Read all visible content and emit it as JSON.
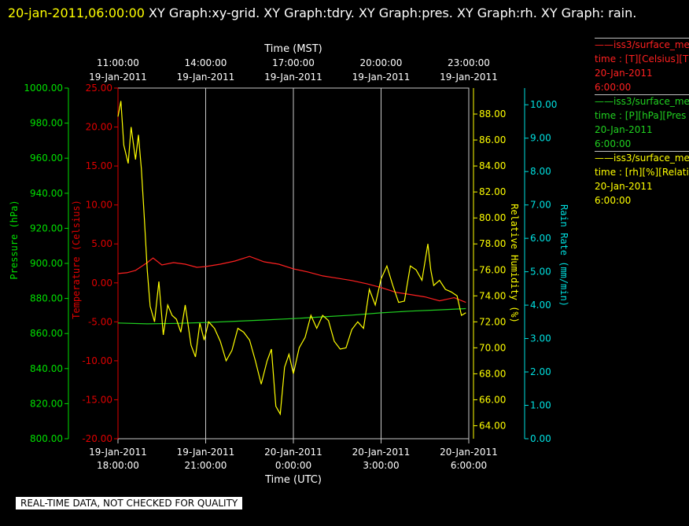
{
  "header": {
    "timestamp": "20-jan-2011,06:00:00",
    "title_rest": "  XY Graph:xy-grid.  XY Graph:tdry.  XY Graph:pres.  XY Graph:rh.  XY Graph: rain."
  },
  "legend": [
    {
      "line1": "iss3/surface_me",
      "line2": "time : [T][Celsius][T",
      "line3": "20-Jan-2011",
      "line4": "6:00:00",
      "color": "#ff2020"
    },
    {
      "line1": "iss3/surface_me",
      "line2": "time : [P][hPa][Pres",
      "line3": "20-Jan-2011",
      "line4": "6:00:00",
      "color": "#20d020"
    },
    {
      "line1": "iss3/surface_me",
      "line2": "time : [rh][%][Relati",
      "line3": "20-Jan-2011",
      "line4": "6:00:00",
      "color": "#ffff00"
    }
  ],
  "disclaimer": "REAL-TIME DATA, NOT CHECKED FOR QUALITY",
  "chart_data": {
    "type": "line",
    "top_axis": {
      "title": "Time (MST)",
      "ticks": [
        {
          "time": "11:00:00",
          "date": "19-Jan-2011"
        },
        {
          "time": "14:00:00",
          "date": "19-Jan-2011"
        },
        {
          "time": "17:00:00",
          "date": "19-Jan-2011"
        },
        {
          "time": "20:00:00",
          "date": "19-Jan-2011"
        },
        {
          "time": "23:00:00",
          "date": "19-Jan-2011"
        }
      ]
    },
    "bottom_axis": {
      "title": "Time (UTC)",
      "ticks": [
        {
          "date": "19-Jan-2011",
          "time": "18:00:00"
        },
        {
          "date": "19-Jan-2011",
          "time": "21:00:00"
        },
        {
          "date": "20-Jan-2011",
          "time": "0:00:00"
        },
        {
          "date": "20-Jan-2011",
          "time": "3:00:00"
        },
        {
          "date": "20-Jan-2011",
          "time": "6:00:00"
        }
      ],
      "range_hours_utc": [
        18,
        30
      ]
    },
    "y_axes": {
      "pressure": {
        "label": "Pressure (hPa)",
        "range": [
          800,
          1000
        ],
        "ticks": [
          "800.00",
          "820.00",
          "840.00",
          "860.00",
          "880.00",
          "900.00",
          "920.00",
          "940.00",
          "960.00",
          "980.00",
          "1000.00"
        ],
        "color": "#00e000"
      },
      "temperature": {
        "label": "Temperature (Celsius)",
        "range": [
          -20,
          25
        ],
        "ticks": [
          "-20.00",
          "-15.00",
          "-10.00",
          "-5.00",
          "0.00",
          "5.00",
          "10.00",
          "15.00",
          "20.00",
          "25.00"
        ],
        "color": "#e00000"
      },
      "humidity": {
        "label": "Relative Humidity (%)",
        "range": [
          63,
          90
        ],
        "ticks": [
          "64.00",
          "66.00",
          "68.00",
          "70.00",
          "72.00",
          "74.00",
          "76.00",
          "78.00",
          "80.00",
          "82.00",
          "84.00",
          "86.00",
          "88.00"
        ],
        "color": "#ffff00"
      },
      "rain": {
        "label": "Rain Rate (mm/min)",
        "range": [
          0,
          10.5
        ],
        "ticks": [
          "0.00",
          "1.00",
          "2.00",
          "3.00",
          "4.00",
          "5.00",
          "6.00",
          "7.00",
          "8.00",
          "9.00",
          "10.00"
        ],
        "color": "#00e0e0"
      }
    },
    "series": [
      {
        "name": "iss3/surface_me time : [T][Celsius][T",
        "axis": "temperature",
        "color": "#ff2020",
        "x_hours_utc": [
          18.0,
          18.3,
          18.6,
          19.0,
          19.2,
          19.5,
          19.9,
          20.3,
          20.7,
          21.0,
          21.5,
          22.0,
          22.5,
          23.0,
          23.5,
          24.0,
          24.5,
          25.0,
          25.5,
          26.0,
          26.5,
          27.0,
          27.5,
          28.0,
          28.5,
          29.0,
          29.5,
          29.9
        ],
        "y": [
          1.2,
          1.3,
          1.6,
          2.6,
          3.2,
          2.3,
          2.6,
          2.4,
          2.0,
          2.1,
          2.4,
          2.8,
          3.4,
          2.7,
          2.4,
          1.8,
          1.4,
          0.9,
          0.6,
          0.3,
          -0.1,
          -0.6,
          -1.2,
          -1.5,
          -1.8,
          -2.3,
          -1.9,
          -2.5
        ]
      },
      {
        "name": "iss3/surface_me time : [P][hPa][Pres",
        "axis": "pressure",
        "color": "#20d020",
        "x_hours_utc": [
          18.0,
          19.0,
          20.0,
          21.0,
          22.0,
          23.0,
          24.0,
          25.0,
          26.0,
          27.0,
          28.0,
          29.0,
          29.9
        ],
        "y": [
          866,
          865.5,
          865.8,
          866.3,
          867,
          867.7,
          868.5,
          869.5,
          870.5,
          871.8,
          872.8,
          873.5,
          874.2
        ]
      },
      {
        "name": "iss3/surface_me time : [rh][%][Relati",
        "axis": "humidity",
        "color": "#ffff00",
        "x_hours_utc": [
          18.0,
          18.1,
          18.2,
          18.35,
          18.45,
          18.6,
          18.7,
          18.8,
          18.9,
          19.0,
          19.1,
          19.25,
          19.4,
          19.55,
          19.7,
          19.85,
          20.0,
          20.15,
          20.3,
          20.5,
          20.65,
          20.8,
          20.95,
          21.1,
          21.3,
          21.5,
          21.7,
          21.9,
          22.1,
          22.3,
          22.5,
          22.7,
          22.9,
          23.1,
          23.25,
          23.4,
          23.55,
          23.7,
          23.85,
          24.0,
          24.2,
          24.4,
          24.6,
          24.8,
          25.0,
          25.2,
          25.4,
          25.6,
          25.8,
          26.0,
          26.2,
          26.4,
          26.6,
          26.8,
          27.0,
          27.2,
          27.4,
          27.6,
          27.8,
          28.0,
          28.2,
          28.4,
          28.6,
          28.7,
          28.8,
          29.0,
          29.2,
          29.4,
          29.6,
          29.75,
          29.9
        ],
        "y": [
          87.8,
          89.0,
          85.6,
          84.2,
          87.0,
          84.5,
          86.4,
          83.8,
          80.1,
          76.0,
          73.2,
          72.0,
          75.1,
          71.0,
          73.3,
          72.5,
          72.2,
          71.2,
          73.3,
          70.2,
          69.3,
          71.9,
          70.6,
          72.0,
          71.5,
          70.5,
          69.0,
          69.8,
          71.5,
          71.2,
          70.6,
          69.0,
          67.2,
          69.0,
          69.9,
          65.5,
          64.9,
          68.5,
          69.5,
          68.0,
          70.0,
          70.8,
          72.5,
          71.5,
          72.5,
          72.1,
          70.5,
          69.9,
          70.0,
          71.4,
          72.0,
          71.5,
          74.5,
          73.3,
          75.3,
          76.3,
          74.8,
          73.5,
          73.6,
          76.3,
          76.0,
          75.2,
          78.0,
          76.0,
          74.8,
          75.2,
          74.5,
          74.3,
          74.0,
          72.5,
          72.7
        ]
      },
      {
        "name": "rain",
        "axis": "rain",
        "color": "#00e0e0",
        "x_hours_utc": [],
        "y": []
      }
    ],
    "grid": true
  }
}
